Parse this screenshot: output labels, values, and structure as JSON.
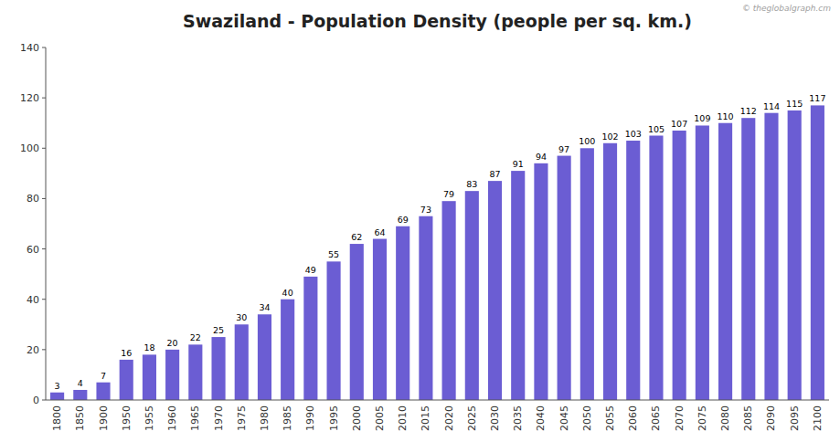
{
  "chart_data": {
    "type": "bar",
    "title": "Swaziland - Population Density (people per sq. km.)",
    "categories": [
      "1800",
      "1850",
      "1900",
      "1950",
      "1955",
      "1960",
      "1965",
      "1970",
      "1975",
      "1980",
      "1985",
      "1990",
      "1995",
      "2000",
      "2005",
      "2010",
      "2015",
      "2020",
      "2025",
      "2030",
      "2035",
      "2040",
      "2045",
      "2050",
      "2055",
      "2060",
      "2065",
      "2070",
      "2075",
      "2080",
      "2085",
      "2090",
      "2095",
      "2100"
    ],
    "values": [
      3,
      4,
      7,
      16,
      18,
      20,
      22,
      25,
      30,
      34,
      40,
      49,
      55,
      62,
      64,
      69,
      73,
      79,
      83,
      87,
      91,
      94,
      97,
      100,
      102,
      103,
      105,
      107,
      109,
      110,
      112,
      114,
      115,
      117
    ],
    "color": "#6B5DD3",
    "ylim": [
      0,
      140
    ],
    "yticks": [
      0,
      20,
      40,
      60,
      80,
      100,
      120,
      140
    ],
    "data_labels": true,
    "grid": false,
    "annotations": [
      "© theglobalgraph.cm"
    ]
  }
}
